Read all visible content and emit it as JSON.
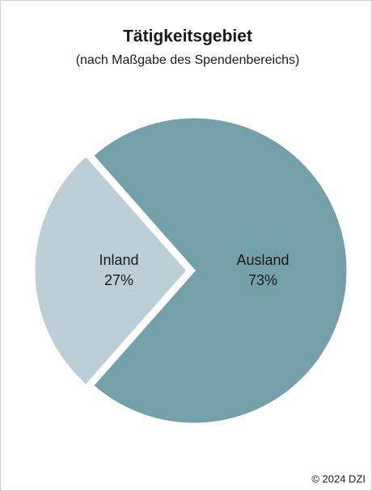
{
  "chart_data": {
    "type": "pie",
    "title": "Tätigkeitsgebiet",
    "subtitle": "(nach Maßgabe des Spendenbereichs)",
    "categories": [
      "Ausland",
      "Inland"
    ],
    "values": [
      73,
      27
    ],
    "value_labels": [
      "73%",
      "27%"
    ],
    "colors": [
      "#74a0a9",
      "#bccfd6"
    ],
    "source": "© 2024 DZI"
  }
}
